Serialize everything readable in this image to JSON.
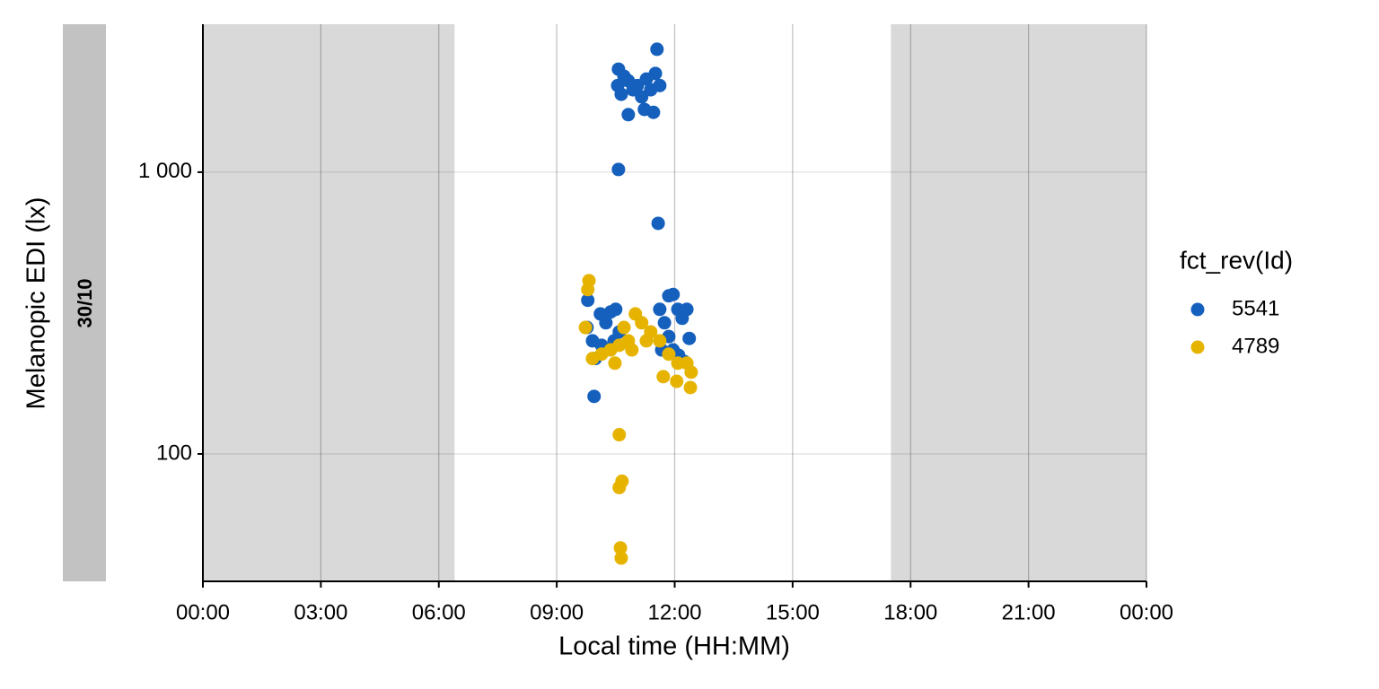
{
  "chart_data": {
    "type": "scatter",
    "facet_label": "30/10",
    "x_label": "Local time (HH:MM)",
    "y_label": "Melanopic EDI (lx)",
    "legend_title": "fct_rev(Id)",
    "legend_position": "right",
    "log_y": true,
    "grid": true,
    "shaded_regions": [
      [
        0,
        6.4
      ],
      [
        17.5,
        24
      ]
    ],
    "shade_color": "#d9d9d9",
    "xlim": [
      0,
      24
    ],
    "xticks": [
      {
        "value": 0,
        "label": "00:00"
      },
      {
        "value": 3,
        "label": "03:00"
      },
      {
        "value": 6,
        "label": "06:00"
      },
      {
        "value": 9,
        "label": "09:00"
      },
      {
        "value": 12,
        "label": "12:00"
      },
      {
        "value": 15,
        "label": "15:00"
      },
      {
        "value": 18,
        "label": "18:00"
      },
      {
        "value": 21,
        "label": "21:00"
      },
      {
        "value": 24,
        "label": "00:00"
      }
    ],
    "ylim": [
      35.3,
      3350
    ],
    "yticks": [
      {
        "value": 100,
        "label": "100"
      },
      {
        "value": 1000,
        "label": "1 000"
      }
    ],
    "series": [
      {
        "name": "5541",
        "color": "#1560bd",
        "x": [
          11.55,
          10.57,
          10.71,
          10.82,
          11.05,
          11.28,
          11.51,
          11.62,
          10.64,
          10.94,
          11.16,
          11.39,
          10.82,
          11.23,
          11.46,
          10.55,
          10.57,
          11.58,
          9.79,
          9.77,
          9.91,
          9.98,
          10.11,
          10.25,
          10.37,
          10.5,
          10.59,
          10.14,
          10.46,
          9.95,
          11.62,
          11.74,
          11.85,
          11.96,
          12.08,
          12.19,
          12.31,
          12.37,
          11.96,
          12.1,
          12.24,
          11.67,
          11.85
        ],
        "values": [
          2730,
          2320,
          2190,
          2110,
          2030,
          2140,
          2240,
          2030,
          1890,
          1960,
          1850,
          1960,
          1600,
          1670,
          1630,
          2030,
          1022,
          658,
          351,
          281,
          252,
          218,
          314,
          292,
          319,
          326,
          271,
          243,
          252,
          160,
          326,
          292,
          364,
          368,
          326,
          303,
          326,
          257,
          234,
          224,
          213,
          234,
          261
        ]
      },
      {
        "name": "4789",
        "color": "#e6b400",
        "x": [
          9.82,
          9.79,
          9.73,
          9.91,
          10.14,
          10.37,
          10.59,
          10.82,
          11.0,
          11.16,
          11.39,
          11.62,
          11.85,
          12.08,
          12.31,
          12.42,
          12.4,
          12.05,
          11.71,
          10.71,
          10.91,
          11.28,
          10.48,
          10.59,
          10.66,
          10.59,
          10.62,
          10.64
        ],
        "values": [
          412,
          383,
          281,
          218,
          226,
          234,
          243,
          252,
          314,
          292,
          271,
          252,
          226,
          210,
          210,
          195,
          172,
          181,
          188,
          281,
          234,
          252,
          210,
          117,
          80,
          76,
          46.4,
          42.7
        ]
      }
    ]
  }
}
